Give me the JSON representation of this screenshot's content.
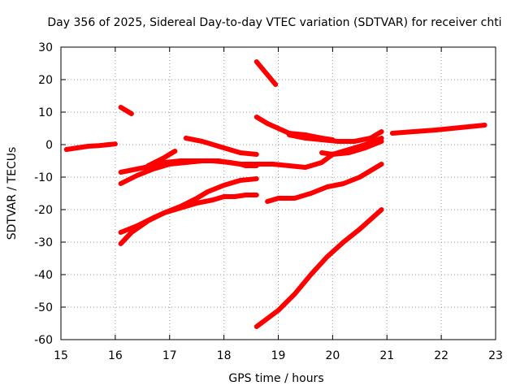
{
  "chart_data": {
    "type": "line",
    "title": "Day 356 of 2025, Sidereal Day-to-day VTEC variation (SDTVAR) for receiver chti",
    "xlabel": "GPS time / hours",
    "ylabel": "SDTVAR / TECUs",
    "xlim": [
      15,
      23
    ],
    "ylim": [
      -60,
      30
    ],
    "xticks": [
      15,
      16,
      17,
      18,
      19,
      20,
      21,
      22,
      23
    ],
    "yticks": [
      -60,
      -50,
      -40,
      -30,
      -20,
      -10,
      0,
      10,
      20,
      30
    ],
    "grid": true,
    "color": "#ff0000",
    "series": [
      {
        "x": [
          15.1,
          15.3,
          15.5,
          15.7,
          16.0
        ],
        "y": [
          -1.5,
          -1.0,
          -0.5,
          -0.3,
          0.2
        ]
      },
      {
        "x": [
          16.1,
          16.3
        ],
        "y": [
          11.5,
          9.5
        ]
      },
      {
        "x": [
          16.1,
          16.4,
          16.7,
          16.9,
          17.2,
          17.5,
          17.8,
          18.1,
          18.3,
          18.4,
          18.5,
          18.6
        ],
        "y": [
          -8.5,
          -7.5,
          -6.5,
          -5.5,
          -5.0,
          -5.0,
          -5.0,
          -5.5,
          -6.0,
          -6.5,
          -6.5,
          -6.5
        ]
      },
      {
        "x": [
          16.1,
          16.4,
          16.7,
          17.0,
          17.3,
          17.6,
          17.9,
          18.1,
          18.3,
          18.6
        ],
        "y": [
          -12.0,
          -9.5,
          -7.5,
          -6.0,
          -5.5,
          -5.0,
          -5.0,
          -5.5,
          -6.0,
          -6.0
        ]
      },
      {
        "x": [
          16.1,
          16.4,
          16.7,
          16.9,
          17.2,
          17.5,
          17.8,
          18.0,
          18.2,
          18.4,
          18.6
        ],
        "y": [
          -27.0,
          -25.0,
          -22.5,
          -21.0,
          -19.5,
          -18.0,
          -17.0,
          -16.0,
          -16.0,
          -15.5,
          -15.5
        ]
      },
      {
        "x": [
          16.1,
          16.3,
          16.6,
          16.9,
          17.2,
          17.5,
          17.7,
          18.0,
          18.3,
          18.6
        ],
        "y": [
          -30.5,
          -27.0,
          -23.5,
          -21.0,
          -19.0,
          -16.5,
          -14.5,
          -12.5,
          -11.0,
          -10.5
        ]
      },
      {
        "x": [
          16.6,
          16.9,
          17.1
        ],
        "y": [
          -6.5,
          -4.0,
          -2.0
        ]
      },
      {
        "x": [
          17.3,
          17.6,
          17.9,
          18.1,
          18.3,
          18.6
        ],
        "y": [
          2.0,
          1.0,
          -0.5,
          -1.5,
          -2.5,
          -3.0
        ]
      },
      {
        "x": [
          18.6,
          18.75,
          18.9,
          18.95
        ],
        "y": [
          25.5,
          22.5,
          19.5,
          18.5
        ]
      },
      {
        "x": [
          18.6,
          18.8,
          19.0,
          19.2,
          19.5,
          19.8,
          20.0
        ],
        "y": [
          8.5,
          6.5,
          5.0,
          3.5,
          3.0,
          2.0,
          1.5
        ]
      },
      {
        "x": [
          18.6,
          18.9,
          19.2,
          19.5,
          19.7,
          19.8,
          20.0,
          20.3,
          20.6,
          20.9
        ],
        "y": [
          -6.0,
          -6.0,
          -6.5,
          -7.0,
          -6.0,
          -5.5,
          -3.0,
          -1.5,
          0.0,
          2.0
        ]
      },
      {
        "x": [
          18.6,
          19.0,
          19.3,
          19.6,
          19.9,
          20.2,
          20.5,
          20.7,
          20.9
        ],
        "y": [
          -56.0,
          -51.0,
          -46.0,
          -40.0,
          -34.5,
          -30.0,
          -26.0,
          -23.0,
          -20.0
        ]
      },
      {
        "x": [
          18.8,
          19.0,
          19.3,
          19.6,
          19.9,
          20.2,
          20.5,
          20.7,
          20.9
        ],
        "y": [
          -17.5,
          -16.5,
          -16.5,
          -15.0,
          -13.0,
          -12.0,
          -10.0,
          -8.0,
          -6.0
        ]
      },
      {
        "x": [
          19.2,
          19.5,
          19.8,
          20.1,
          20.4,
          20.7,
          20.9
        ],
        "y": [
          3.0,
          2.0,
          1.5,
          1.0,
          1.0,
          2.0,
          4.0
        ]
      },
      {
        "x": [
          19.8,
          20.0,
          20.3,
          20.6,
          20.9
        ],
        "y": [
          -2.5,
          -3.0,
          -2.5,
          -1.0,
          1.0
        ]
      },
      {
        "x": [
          21.1,
          21.5,
          21.9,
          22.2,
          22.5,
          22.8
        ],
        "y": [
          3.5,
          4.0,
          4.5,
          5.0,
          5.5,
          6.0
        ]
      }
    ]
  }
}
